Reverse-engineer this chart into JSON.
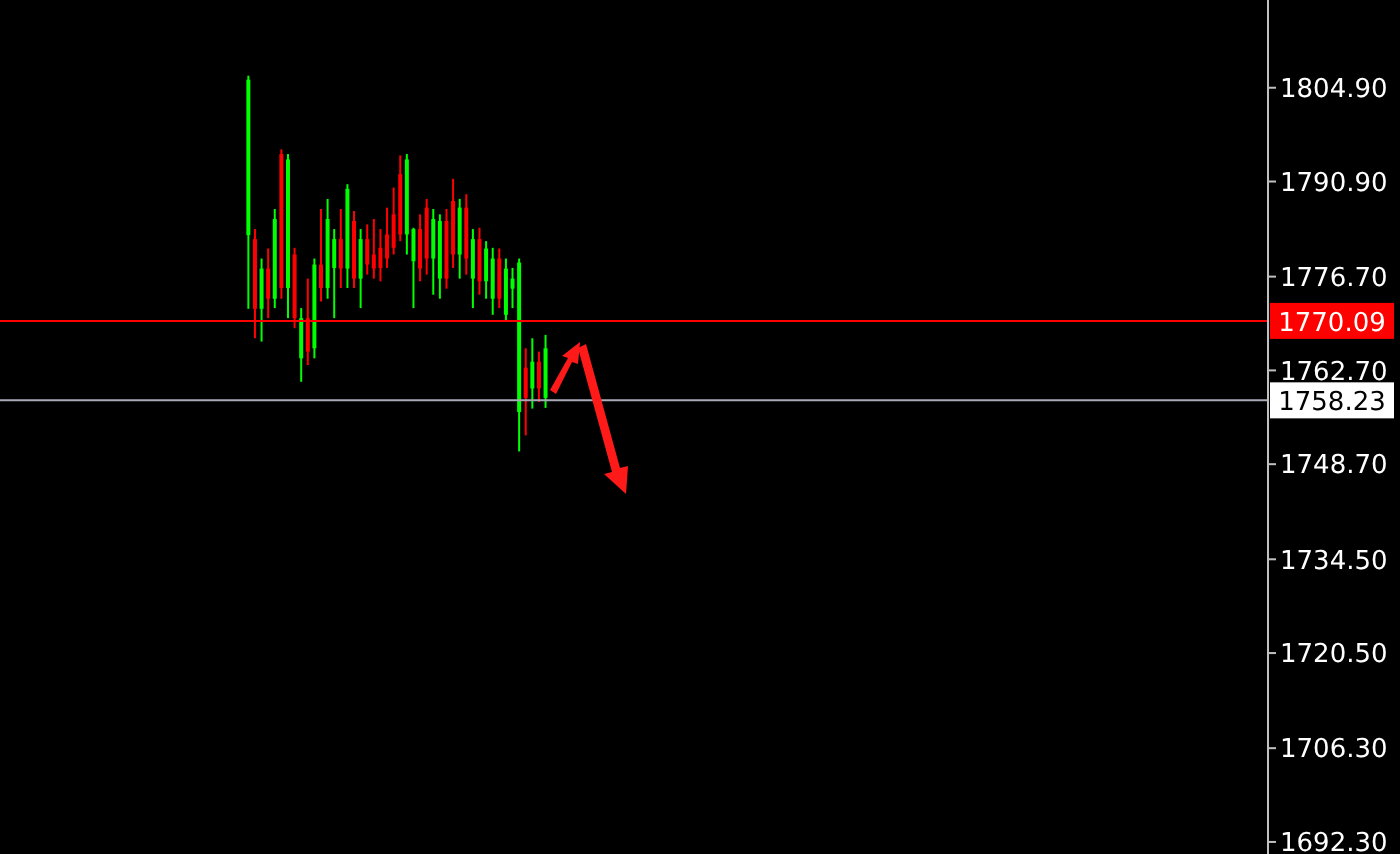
{
  "chart_data": {
    "type": "candlestick",
    "categories": [
      null,
      null,
      null,
      null,
      null,
      null,
      null,
      null,
      null,
      null,
      null,
      null,
      null,
      null,
      null,
      null,
      null,
      null,
      null,
      null,
      null,
      null,
      null,
      null,
      null,
      null,
      null,
      null,
      null,
      null,
      null,
      null,
      null,
      null,
      null,
      null,
      null,
      null,
      null,
      null,
      null,
      null,
      null,
      null,
      null,
      null,
      null,
      null,
      null,
      null,
      null,
      null,
      null,
      null,
      null,
      null,
      null,
      null,
      null,
      null,
      null,
      null,
      null,
      null,
      null,
      null,
      null,
      null,
      null,
      null,
      null,
      null,
      null,
      null,
      null,
      null,
      null,
      null,
      null,
      null,
      null,
      null,
      null,
      null,
      null,
      null,
      null,
      null,
      null,
      null,
      null,
      null,
      null,
      null,
      null,
      null,
      null,
      null,
      null,
      null,
      null,
      null,
      null,
      null,
      null,
      null,
      null,
      null,
      null,
      null,
      null,
      null,
      null,
      null,
      null,
      null,
      null,
      null,
      null,
      null,
      null,
      null,
      null,
      null,
      null,
      null,
      null,
      null,
      null,
      null,
      null,
      null,
      null,
      null,
      null,
      null,
      null,
      null,
      null,
      null,
      null,
      null,
      null,
      null,
      null,
      null,
      null,
      null,
      null,
      null,
      null,
      null,
      null,
      null,
      null,
      null,
      null,
      null,
      null,
      null,
      null,
      null,
      null,
      null,
      null,
      null,
      null,
      null,
      null,
      null,
      null,
      null,
      null,
      null,
      null,
      null,
      null,
      null,
      null,
      null,
      null,
      null,
      null,
      null,
      null,
      null,
      null,
      null,
      null,
      null,
      null,
      null
    ],
    "ohlc": [
      null,
      null,
      null,
      null,
      null,
      null,
      null,
      null,
      null,
      null,
      null,
      null,
      null,
      null,
      null,
      null,
      null,
      null,
      null,
      null,
      null,
      null,
      null,
      null,
      null,
      null,
      null,
      null,
      null,
      null,
      null,
      null,
      null,
      null,
      null,
      null,
      null,
      [
        1806.1,
        1806.7,
        1771.9,
        1782.9
      ],
      [
        1771.9,
        1783.8,
        1767.5,
        1782.3
      ],
      [
        1777.9,
        1779.4,
        1767.0,
        1771.9
      ],
      [
        1773.4,
        1780.9,
        1770.5,
        1777.9
      ],
      [
        1785.3,
        1786.8,
        1772.0,
        1773.4
      ],
      [
        1775.0,
        1795.7,
        1773.4,
        1795.0
      ],
      [
        1794.2,
        1795.0,
        1770.5,
        1775.0
      ],
      [
        1770.5,
        1781.0,
        1769.0,
        1780.0
      ],
      [
        1770.5,
        1772.0,
        1761.0,
        1764.5
      ],
      [
        1765.5,
        1776.4,
        1763.5,
        1770.5
      ],
      [
        1778.5,
        1779.4,
        1764.5,
        1766.0
      ],
      [
        1775.0,
        1786.8,
        1773.0,
        1778.5
      ],
      [
        1785.3,
        1788.3,
        1773.4,
        1775.0
      ],
      [
        1782.3,
        1783.8,
        1770.5,
        1778.0
      ],
      [
        1777.9,
        1786.8,
        1775.0,
        1782.3
      ],
      [
        1789.8,
        1790.5,
        1775.0,
        1777.9
      ],
      [
        1776.4,
        1786.5,
        1775.0,
        1785.0
      ],
      [
        1782.3,
        1783.8,
        1772.0,
        1776.4
      ],
      [
        1778.5,
        1784.5,
        1777.0,
        1782.3
      ],
      [
        1777.9,
        1785.3,
        1776.4,
        1780.0
      ],
      [
        1778.0,
        1783.8,
        1776.0,
        1781.0
      ],
      [
        1779.4,
        1787.0,
        1778.0,
        1783.0
      ],
      [
        1781.0,
        1790.0,
        1780.0,
        1786.0
      ],
      [
        1783.0,
        1794.8,
        1782.0,
        1792.0
      ],
      [
        1794.2,
        1795.0,
        1780.0,
        1783.0
      ],
      [
        1783.8,
        1784.0,
        1772.0,
        1779.0
      ],
      [
        1777.9,
        1786.0,
        1776.0,
        1783.8
      ],
      [
        1779.4,
        1788.3,
        1777.0,
        1787.0
      ],
      [
        1785.3,
        1786.8,
        1774.0,
        1779.4
      ],
      [
        1785.0,
        1786.0,
        1773.4,
        1776.4
      ],
      [
        1776.4,
        1786.8,
        1774.9,
        1785.0
      ],
      [
        1780.0,
        1791.3,
        1778.0,
        1788.0
      ],
      [
        1787.0,
        1788.3,
        1776.4,
        1780.0
      ],
      [
        1779.4,
        1789.0,
        1777.0,
        1787.0
      ],
      [
        1782.3,
        1783.8,
        1772.0,
        1776.4
      ],
      [
        1776.0,
        1784.0,
        1774.0,
        1782.3
      ],
      [
        1780.9,
        1782.0,
        1773.4,
        1776.0
      ],
      [
        1779.4,
        1781.0,
        1771.0,
        1773.4
      ],
      [
        1773.4,
        1780.9,
        1772.0,
        1779.4
      ],
      [
        1777.9,
        1779.4,
        1770.0,
        1771.0
      ],
      [
        1776.4,
        1778.0,
        1772.0,
        1774.9
      ],
      [
        1778.8,
        1779.4,
        1750.6,
        1756.5
      ],
      [
        1758.6,
        1766.0,
        1753.0,
        1763.1
      ],
      [
        1764.0,
        1767.5,
        1757.0,
        1760.0
      ],
      [
        1760.0,
        1765.5,
        1758.0,
        1764.0
      ],
      [
        1766.0,
        1768.0,
        1757.1,
        1758.6
      ],
      null,
      null,
      null,
      null,
      null,
      null,
      null,
      null,
      null,
      null,
      null,
      null,
      null,
      null,
      null,
      null,
      null,
      null,
      null,
      null,
      null,
      null,
      null,
      null,
      null,
      null,
      null,
      null,
      null,
      null,
      null,
      null,
      null,
      null,
      null,
      null,
      null,
      null,
      null,
      null,
      null,
      null,
      null,
      null,
      null,
      null,
      null,
      null,
      null,
      null,
      null,
      null,
      null,
      null,
      null,
      null,
      null,
      null,
      null,
      null,
      null,
      null,
      null,
      null,
      null,
      null,
      null,
      null,
      null,
      null,
      null,
      null,
      null,
      null,
      null,
      null,
      null,
      null,
      null,
      null,
      null,
      null,
      null,
      null,
      null,
      null,
      null,
      null,
      null,
      null,
      null,
      null,
      null,
      null,
      null,
      null,
      null,
      null,
      null,
      null,
      null,
      null,
      null,
      null,
      null,
      null,
      null,
      null,
      null
    ],
    "colors": [
      null,
      null,
      null,
      null,
      null,
      null,
      null,
      null,
      null,
      null,
      null,
      null,
      null,
      null,
      null,
      null,
      null,
      null,
      null,
      null,
      null,
      null,
      null,
      null,
      null,
      null,
      null,
      null,
      null,
      null,
      null,
      null,
      null,
      null,
      null,
      null,
      null,
      "#00ff00",
      "#ff0000",
      "#00ff00",
      "#ff0000",
      "#00ff00",
      "#ff0000",
      "#00ff00",
      "#ff0000",
      "#00ff00",
      "#ff0000",
      "#00ff00",
      "#ff0000",
      "#00ff00",
      "#00ff00",
      "#ff0000",
      "#00ff00",
      "#ff0000",
      "#00ff00",
      "#ff0000",
      "#ff0000",
      "#ff0000",
      "#ff0000",
      "#ff0000",
      "#ff0000",
      "#00ff00",
      "#00ff00",
      "#ff0000",
      "#ff0000",
      "#00ff00",
      "#00ff00",
      "#ff0000",
      "#ff0000",
      "#00ff00",
      "#ff0000",
      "#00ff00",
      "#ff0000",
      "#00ff00",
      "#00ff00",
      "#ff0000",
      "#00ff00",
      "#00ff00",
      "#00ff00",
      "#ff0000",
      "#00ff00",
      "#ff0000",
      "#00ff00",
      null,
      null,
      null,
      null,
      null,
      null,
      null,
      null,
      null,
      null,
      null,
      null,
      null,
      null,
      null,
      null,
      null,
      null,
      null,
      null,
      null,
      null,
      null,
      null,
      null,
      null,
      null,
      null,
      null,
      null,
      null,
      null,
      null,
      null,
      null,
      null,
      null,
      null,
      null,
      null,
      null,
      null,
      null,
      null,
      null,
      null,
      null,
      null,
      null,
      null,
      null,
      null,
      null,
      null,
      null,
      null,
      null,
      null,
      null,
      null,
      null,
      null,
      null,
      null,
      null,
      null,
      null,
      null,
      null,
      null,
      null,
      null,
      null,
      null,
      null,
      null,
      null,
      null,
      null,
      null,
      null,
      null,
      null,
      null,
      null,
      null,
      null,
      null,
      null,
      null,
      null,
      null,
      null,
      null,
      null,
      null,
      null,
      null,
      null,
      null,
      null,
      null,
      null,
      null,
      null,
      null,
      null,
      null,
      null
    ],
    "ylim": [
      1690.5,
      1818.0
    ],
    "yticks": [
      {
        "value": 1692.3,
        "label": "1692.30"
      },
      {
        "value": 1706.3,
        "label": "1706.30"
      },
      {
        "value": 1720.5,
        "label": "1720.50"
      },
      {
        "value": 1734.5,
        "label": "1734.50"
      },
      {
        "value": 1748.7,
        "label": "1748.70"
      },
      {
        "value": 1762.7,
        "label": "1762.70"
      },
      {
        "value": 1776.7,
        "label": "1776.70"
      },
      {
        "value": 1790.9,
        "label": "1790.90"
      },
      {
        "value": 1804.9,
        "label": "1804.90"
      }
    ],
    "ref_lines": [
      {
        "axis": "y",
        "value": 1770.09,
        "label": "1770.09",
        "color": "#ff0000"
      },
      {
        "axis": "y",
        "value": 1758.23,
        "label": "1758.23",
        "color": "#a8aab8"
      }
    ]
  }
}
